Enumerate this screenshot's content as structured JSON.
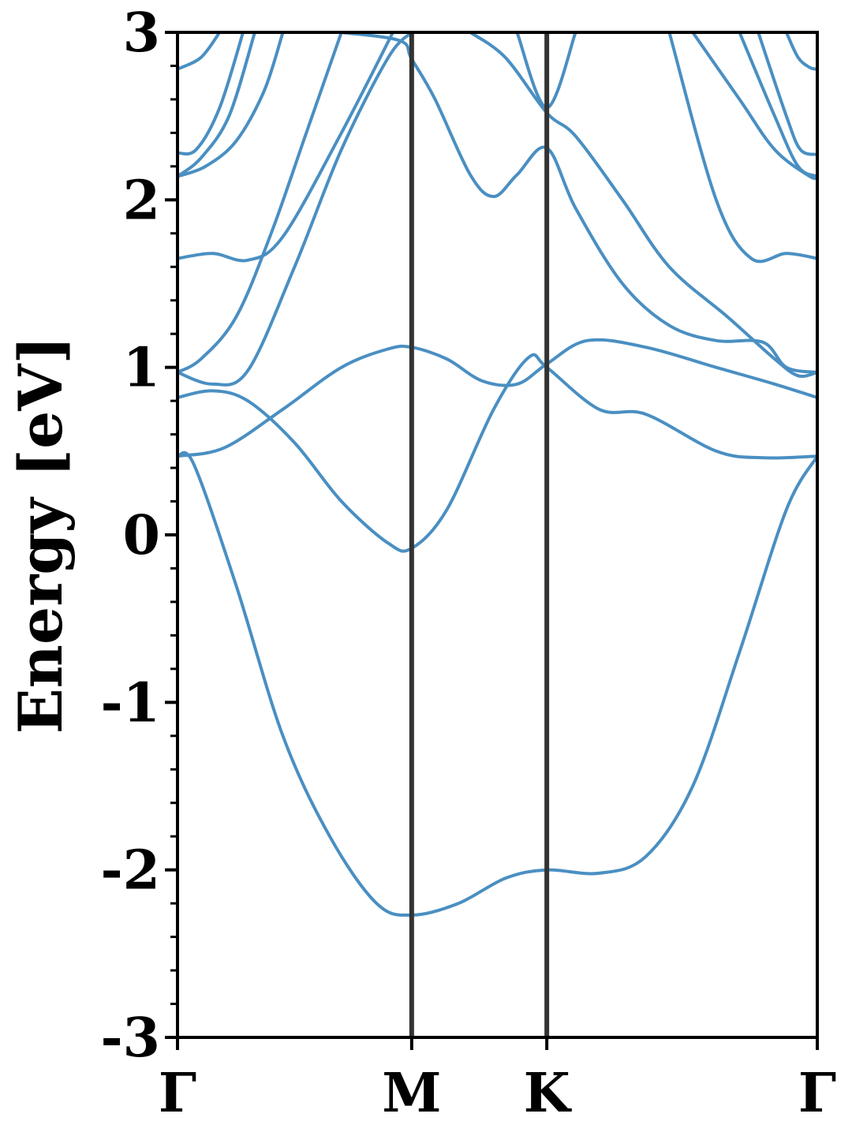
{
  "chart_data": {
    "type": "line",
    "title": "",
    "xlabel": "",
    "ylabel": "Energy [eV]",
    "ylim": [
      -3,
      3
    ],
    "xlim": [
      0,
      2.732
    ],
    "grid": false,
    "yticks": [
      "-3",
      "-2",
      "-1",
      "0",
      "1",
      "2",
      "3"
    ],
    "ytick_values": [
      -3,
      -2,
      -1,
      0,
      1,
      2,
      3
    ],
    "minor_ytick_step": 0.2,
    "high_symmetry_points": [
      {
        "label": "Γ",
        "x": 0.0
      },
      {
        "label": "M",
        "x": 1.0
      },
      {
        "label": "K",
        "x": 1.577
      },
      {
        "label": "Γ",
        "x": 2.732
      }
    ],
    "colors": {
      "band": "#4a8fc2",
      "kpath_line": "#333333",
      "axes": "#000000"
    },
    "series": [
      {
        "values": [
          [
            0,
            0.47
          ],
          [
            0.07,
            0.42
          ],
          [
            0.25,
            -0.3
          ],
          [
            0.45,
            -1.2
          ],
          [
            0.65,
            -1.8
          ],
          [
            0.85,
            -2.2
          ],
          [
            1.0,
            -2.27
          ],
          [
            1.2,
            -2.2
          ],
          [
            1.4,
            -2.05
          ],
          [
            1.577,
            -2.0
          ],
          [
            1.8,
            -2.02
          ],
          [
            2.0,
            -1.92
          ],
          [
            2.2,
            -1.5
          ],
          [
            2.4,
            -0.7
          ],
          [
            2.6,
            0.15
          ],
          [
            2.732,
            0.47
          ]
        ]
      },
      {
        "values": [
          [
            0,
            0.47
          ],
          [
            0.2,
            0.52
          ],
          [
            0.45,
            0.75
          ],
          [
            0.7,
            1.0
          ],
          [
            0.9,
            1.11
          ],
          [
            1.0,
            1.12
          ],
          [
            1.15,
            1.05
          ],
          [
            1.3,
            0.92
          ],
          [
            1.45,
            0.9
          ],
          [
            1.577,
            1.02
          ],
          [
            1.75,
            1.16
          ],
          [
            2.0,
            1.12
          ],
          [
            2.3,
            1.0
          ],
          [
            2.55,
            0.9
          ],
          [
            2.732,
            0.82
          ]
        ]
      },
      {
        "values": [
          [
            0,
            0.82
          ],
          [
            0.15,
            0.86
          ],
          [
            0.3,
            0.8
          ],
          [
            0.5,
            0.55
          ],
          [
            0.7,
            0.2
          ],
          [
            0.9,
            -0.05
          ],
          [
            1.0,
            -0.08
          ],
          [
            1.15,
            0.15
          ],
          [
            1.35,
            0.75
          ],
          [
            1.5,
            1.06
          ],
          [
            1.577,
            1.0
          ],
          [
            1.8,
            0.75
          ],
          [
            2.0,
            0.72
          ],
          [
            2.3,
            0.5
          ],
          [
            2.5,
            0.46
          ],
          [
            2.732,
            0.47
          ]
        ]
      },
      {
        "values": [
          [
            0,
            0.97
          ],
          [
            0.15,
            0.9
          ],
          [
            0.3,
            0.98
          ],
          [
            0.5,
            1.6
          ],
          [
            0.7,
            2.3
          ],
          [
            0.9,
            2.85
          ],
          [
            1.0,
            3.0
          ]
        ]
      },
      {
        "values": [
          [
            0,
            0.97
          ],
          [
            0.1,
            1.05
          ],
          [
            0.25,
            1.3
          ],
          [
            0.4,
            1.8
          ],
          [
            0.55,
            2.4
          ],
          [
            0.7,
            3.0
          ]
        ]
      },
      {
        "values": [
          [
            0,
            1.65
          ],
          [
            0.15,
            1.68
          ],
          [
            0.3,
            1.64
          ],
          [
            0.45,
            1.78
          ],
          [
            0.7,
            2.4
          ],
          [
            0.92,
            3.0
          ]
        ]
      },
      {
        "values": [
          [
            0.7,
            3.0
          ],
          [
            0.95,
            2.95
          ],
          [
            1.0,
            2.84
          ],
          [
            1.1,
            2.6
          ],
          [
            1.25,
            2.15
          ],
          [
            1.35,
            2.02
          ],
          [
            1.45,
            2.15
          ],
          [
            1.577,
            2.31
          ],
          [
            1.7,
            1.95
          ],
          [
            1.9,
            1.5
          ],
          [
            2.1,
            1.25
          ],
          [
            2.3,
            1.16
          ],
          [
            2.5,
            1.15
          ],
          [
            2.6,
            1.0
          ],
          [
            2.732,
            0.97
          ]
        ]
      },
      {
        "values": [
          [
            1.25,
            3.0
          ],
          [
            1.4,
            2.85
          ],
          [
            1.577,
            2.52
          ],
          [
            1.7,
            2.38
          ],
          [
            1.9,
            2.0
          ],
          [
            2.1,
            1.6
          ],
          [
            2.35,
            1.3
          ],
          [
            2.55,
            1.05
          ],
          [
            2.65,
            0.95
          ],
          [
            2.732,
            0.97
          ]
        ]
      },
      {
        "values": [
          [
            1.45,
            3.0
          ],
          [
            1.577,
            2.55
          ],
          [
            1.7,
            3.0
          ]
        ]
      },
      {
        "values": [
          [
            2.1,
            3.0
          ],
          [
            2.3,
            2.0
          ],
          [
            2.45,
            1.65
          ],
          [
            2.6,
            1.68
          ],
          [
            2.732,
            1.65
          ]
        ]
      },
      {
        "values": [
          [
            2.2,
            3.0
          ],
          [
            2.4,
            2.6
          ],
          [
            2.55,
            2.3
          ],
          [
            2.7,
            2.14
          ],
          [
            2.732,
            2.14
          ]
        ]
      },
      {
        "values": [
          [
            2.4,
            3.0
          ],
          [
            2.55,
            2.5
          ],
          [
            2.65,
            2.2
          ],
          [
            2.732,
            2.14
          ]
        ]
      },
      {
        "values": [
          [
            2.48,
            3.0
          ],
          [
            2.6,
            2.5
          ],
          [
            2.66,
            2.3
          ],
          [
            2.732,
            2.27
          ]
        ]
      },
      {
        "values": [
          [
            2.6,
            3.0
          ],
          [
            2.65,
            2.85
          ],
          [
            2.7,
            2.79
          ],
          [
            2.732,
            2.78
          ]
        ]
      },
      {
        "values": [
          [
            0,
            2.14
          ],
          [
            0.12,
            2.2
          ],
          [
            0.25,
            2.35
          ],
          [
            0.37,
            2.65
          ],
          [
            0.45,
            3.0
          ]
        ]
      },
      {
        "values": [
          [
            0,
            2.14
          ],
          [
            0.1,
            2.25
          ],
          [
            0.22,
            2.5
          ],
          [
            0.33,
            3.0
          ]
        ]
      },
      {
        "values": [
          [
            0,
            2.28
          ],
          [
            0.08,
            2.3
          ],
          [
            0.18,
            2.55
          ],
          [
            0.28,
            3.0
          ]
        ]
      },
      {
        "values": [
          [
            0,
            2.78
          ],
          [
            0.1,
            2.85
          ],
          [
            0.18,
            3.0
          ]
        ]
      }
    ]
  }
}
